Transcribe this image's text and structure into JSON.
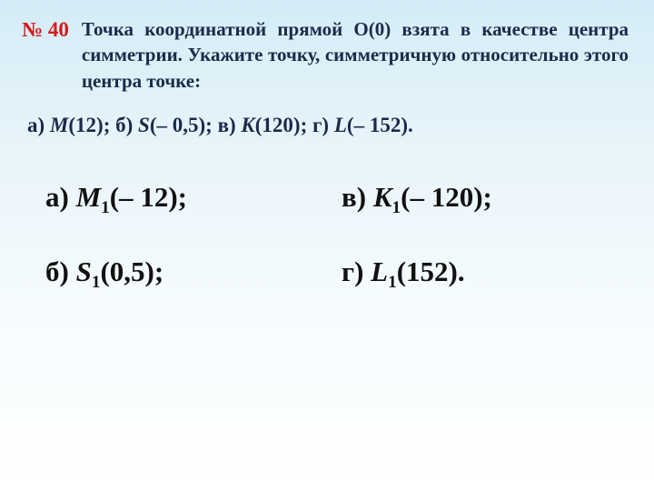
{
  "colors": {
    "task_number_color": "#d11b1b",
    "body_text_color": "#1a2b4a",
    "answer_text_color": "#111111",
    "bg_gradient_top": "#d4ecf7",
    "bg_gradient_bottom": "#ffffff"
  },
  "typography": {
    "task_number_fontsize": 23,
    "task_text_fontsize": 21,
    "given_fontsize": 23,
    "answer_fontsize": 31,
    "font_family": "Georgia, serif",
    "weight": "bold"
  },
  "task_number": "№ 40",
  "task_text_prefix": "Точка координатной прямой ",
  "task_text_O": "О",
  "task_text_Oval": "(0)",
  "task_text_rest": " взята в качестве центра симметрии. Укажите точку, симметричную относительно этого центра точке:",
  "given": {
    "a_label": "а) ",
    "a_var": "М",
    "a_val": "(12);  ",
    "b_label": "б) ",
    "b_var": "S",
    "b_val": "(– 0,5);  ",
    "v_label": "в) ",
    "v_var": "K",
    "v_val": "(120);  ",
    "g_label": "г) ",
    "g_var": "L",
    "g_val": "(– 152)."
  },
  "answers": {
    "a": {
      "label": "а)  ",
      "var": "М",
      "sub": "1",
      "val": "(– 12);"
    },
    "v": {
      "label": "в)  ",
      "var": "K",
      "sub": "1",
      "val": "(– 120);"
    },
    "b": {
      "label": "б)  ",
      "var": "S",
      "sub": "1",
      "val": "(0,5);"
    },
    "g": {
      "label": "г)  ",
      "var": "L",
      "sub": "1",
      "val": "(152)."
    }
  }
}
